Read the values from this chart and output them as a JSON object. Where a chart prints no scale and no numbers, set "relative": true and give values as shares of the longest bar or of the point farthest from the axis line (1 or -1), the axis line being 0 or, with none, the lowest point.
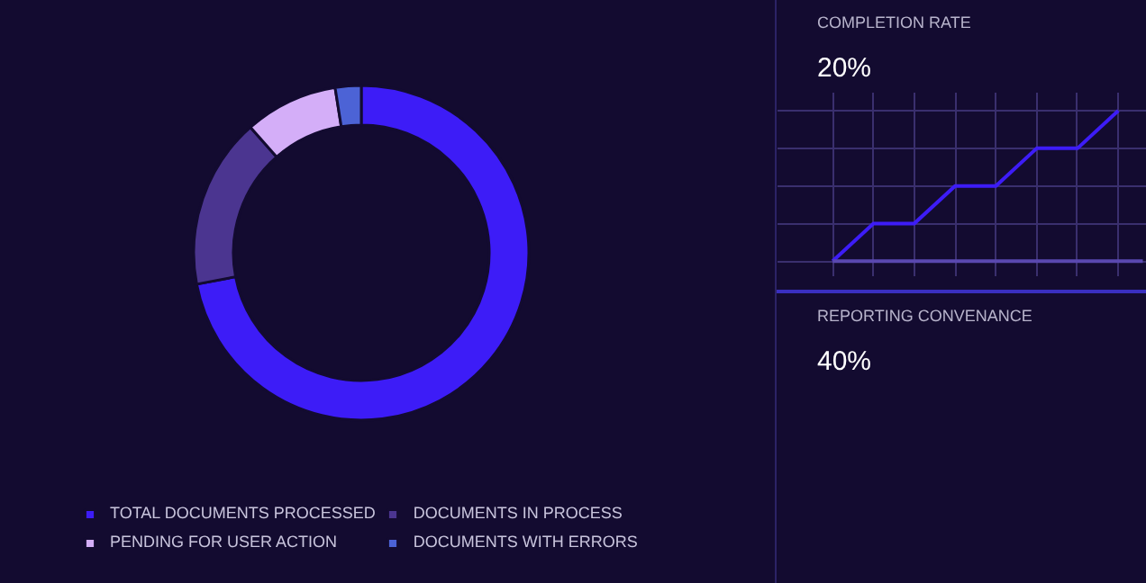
{
  "chart_data": [
    {
      "type": "donut",
      "categories": [
        "TOTAL DOCUMENTS PROCESSED",
        "DOCUMENTS IN PROCESS",
        "PENDING FOR USER ACTION",
        "DOCUMENTS WITH ERRORS"
      ],
      "values": [
        72,
        16.5,
        9,
        2.5
      ],
      "colors": [
        "#3d1cf7",
        "#4b3590",
        "#d4aef8",
        "#4c63d6"
      ],
      "legend": "bottom"
    },
    {
      "type": "line",
      "title": "COMPLETION RATE",
      "subtitle": "20%",
      "categories": [
        null,
        null,
        null,
        null,
        null,
        null,
        null,
        null
      ],
      "relative": true,
      "grid": true,
      "tick_labels": false,
      "series": [
        {
          "color": "#3d1cf7",
          "values": [
            0,
            0.25,
            0.25,
            0.5,
            0.5,
            0.75,
            0.75,
            1
          ]
        }
      ]
    },
    {
      "type": "other",
      "title": "REPORTING CONVENANCE",
      "subtitle": "40%"
    }
  ]
}
